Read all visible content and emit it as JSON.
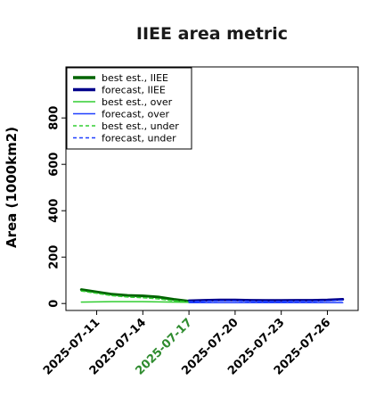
{
  "chart_data": {
    "type": "line",
    "title": "IIEE area metric",
    "ylabel": "Area (1000km2)",
    "xlabel": "",
    "ylim": [
      -30,
      1020
    ],
    "xlim": [
      "2025-07-09",
      "2025-07-28"
    ],
    "y_ticks": [
      0,
      200,
      400,
      600,
      800
    ],
    "x_tick_labels": [
      "2025-07-11",
      "2025-07-14",
      "2025-07-17",
      "2025-07-20",
      "2025-07-23",
      "2025-07-26"
    ],
    "x_tick_colors": [
      "#000000",
      "#000000",
      "#2e8b2e",
      "#000000",
      "#000000",
      "#000000"
    ],
    "grid": false,
    "legend_position": "top-left",
    "series": [
      {
        "name": "best est., IIEE",
        "color": "#006400",
        "style": "solid",
        "width": "thick",
        "x": [
          "2025-07-10",
          "2025-07-11",
          "2025-07-12",
          "2025-07-13",
          "2025-07-14",
          "2025-07-15",
          "2025-07-16",
          "2025-07-17"
        ],
        "y": [
          60,
          50,
          40,
          35,
          33,
          28,
          18,
          10
        ]
      },
      {
        "name": "forecast, IIEE",
        "color": "#00008b",
        "style": "solid",
        "width": "thick",
        "x": [
          "2025-07-17",
          "2025-07-18",
          "2025-07-19",
          "2025-07-20",
          "2025-07-21",
          "2025-07-22",
          "2025-07-23",
          "2025-07-24",
          "2025-07-25",
          "2025-07-26",
          "2025-07-27"
        ],
        "y": [
          12,
          14,
          15,
          15,
          14,
          13,
          13,
          14,
          14,
          15,
          18
        ]
      },
      {
        "name": "best est., over",
        "color": "#32cd32",
        "style": "solid",
        "width": "thin",
        "x": [
          "2025-07-10",
          "2025-07-11",
          "2025-07-12",
          "2025-07-13",
          "2025-07-14",
          "2025-07-15",
          "2025-07-16",
          "2025-07-17"
        ],
        "y": [
          6,
          7,
          8,
          8,
          8,
          7,
          6,
          5
        ]
      },
      {
        "name": "forecast, over",
        "color": "#1f3fff",
        "style": "solid",
        "width": "thin",
        "x": [
          "2025-07-17",
          "2025-07-18",
          "2025-07-19",
          "2025-07-20",
          "2025-07-21",
          "2025-07-22",
          "2025-07-23",
          "2025-07-24",
          "2025-07-25",
          "2025-07-26",
          "2025-07-27"
        ],
        "y": [
          4,
          4,
          4,
          4,
          4,
          4,
          4,
          4,
          4,
          4,
          4
        ]
      },
      {
        "name": "best est., under",
        "color": "#32cd32",
        "style": "dashed",
        "width": "thin",
        "x": [
          "2025-07-10",
          "2025-07-11",
          "2025-07-12",
          "2025-07-13",
          "2025-07-14",
          "2025-07-15",
          "2025-07-16",
          "2025-07-17"
        ],
        "y": [
          54,
          44,
          34,
          28,
          25,
          20,
          12,
          6
        ]
      },
      {
        "name": "forecast, under",
        "color": "#1f3fff",
        "style": "dashed",
        "width": "thin",
        "x": [
          "2025-07-17",
          "2025-07-18",
          "2025-07-19",
          "2025-07-20",
          "2025-07-21",
          "2025-07-22",
          "2025-07-23",
          "2025-07-24",
          "2025-07-25",
          "2025-07-26",
          "2025-07-27"
        ],
        "y": [
          8,
          10,
          11,
          11,
          10,
          9,
          9,
          10,
          10,
          11,
          14
        ]
      }
    ]
  }
}
